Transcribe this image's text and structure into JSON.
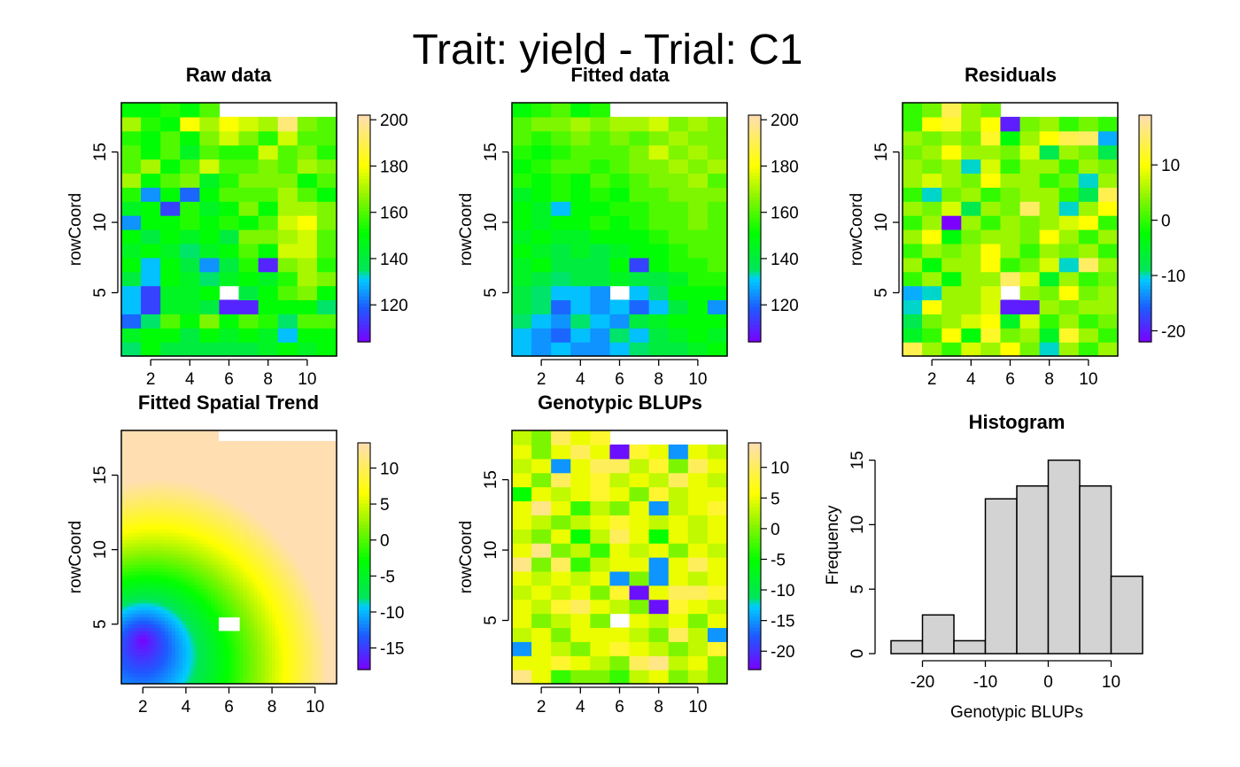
{
  "title": "Trait: yield - Trial: C1",
  "chart_data": [
    {
      "type": "heatmap",
      "title": "Raw data",
      "xlabel": "",
      "ylabel": "rowCoord",
      "xticks": [
        2,
        4,
        6,
        8,
        10
      ],
      "yticks": [
        5,
        10,
        15
      ],
      "xlim": [
        0.5,
        11.5
      ],
      "ylim": [
        0.5,
        18.5
      ],
      "colorbar": {
        "range": [
          104,
          202
        ],
        "ticks": [
          120,
          140,
          160,
          180,
          200
        ]
      },
      "empty_cells": [
        [
          6,
          5
        ],
        [
          6,
          18
        ],
        [
          7,
          18
        ],
        [
          8,
          18
        ],
        [
          9,
          18
        ],
        [
          10,
          18
        ],
        [
          11,
          18
        ]
      ],
      "values": [
        [
          135,
          150,
          140,
          140,
          140,
          140,
          140,
          145,
          150,
          145,
          150
        ],
        [
          145,
          150,
          150,
          140,
          150,
          145,
          150,
          145,
          130,
          150,
          150
        ],
        [
          120,
          135,
          160,
          150,
          165,
          150,
          160,
          155,
          135,
          160,
          160
        ],
        [
          130,
          115,
          145,
          145,
          140,
          110,
          110,
          150,
          150,
          150,
          135
        ],
        [
          130,
          115,
          145,
          145,
          150,
          null,
          140,
          150,
          160,
          165,
          150
        ],
        [
          140,
          130,
          150,
          145,
          135,
          145,
          150,
          145,
          155,
          170,
          165
        ],
        [
          150,
          130,
          150,
          140,
          125,
          140,
          155,
          110,
          165,
          170,
          155
        ],
        [
          145,
          150,
          145,
          135,
          145,
          150,
          160,
          150,
          175,
          175,
          160
        ],
        [
          150,
          140,
          150,
          145,
          150,
          140,
          165,
          165,
          170,
          175,
          160
        ],
        [
          125,
          150,
          150,
          155,
          150,
          155,
          150,
          160,
          175,
          180,
          165
        ],
        [
          145,
          150,
          115,
          155,
          145,
          150,
          165,
          150,
          170,
          170,
          165
        ],
        [
          155,
          125,
          150,
          120,
          150,
          160,
          160,
          160,
          170,
          160,
          150
        ],
        [
          170,
          150,
          160,
          165,
          145,
          155,
          165,
          165,
          165,
          150,
          160
        ],
        [
          160,
          170,
          150,
          160,
          175,
          160,
          160,
          165,
          160,
          170,
          165
        ],
        [
          160,
          150,
          160,
          145,
          160,
          155,
          155,
          175,
          160,
          165,
          155
        ],
        [
          155,
          150,
          160,
          150,
          165,
          175,
          165,
          155,
          175,
          160,
          160
        ],
        [
          170,
          155,
          150,
          180,
          170,
          180,
          175,
          170,
          195,
          165,
          160
        ],
        [
          150,
          150,
          155,
          150,
          160,
          null,
          null,
          null,
          null,
          null,
          null
        ]
      ]
    },
    {
      "type": "heatmap",
      "title": "Fitted data",
      "xlabel": "",
      "ylabel": "rowCoord",
      "xticks": [
        2,
        4,
        6,
        8,
        10
      ],
      "yticks": [
        5,
        10,
        15
      ],
      "xlim": [
        0.5,
        11.5
      ],
      "ylim": [
        0.5,
        18.5
      ],
      "colorbar": {
        "range": [
          104,
          202
        ],
        "ticks": [
          120,
          140,
          160,
          180,
          200
        ]
      },
      "empty_cells": [
        [
          6,
          5
        ],
        [
          6,
          18
        ],
        [
          7,
          18
        ],
        [
          8,
          18
        ],
        [
          9,
          18
        ],
        [
          10,
          18
        ],
        [
          11,
          18
        ]
      ],
      "values": [
        [
          130,
          125,
          130,
          125,
          125,
          130,
          135,
          140,
          140,
          145,
          150
        ],
        [
          130,
          125,
          120,
          130,
          125,
          135,
          130,
          140,
          145,
          150,
          145
        ],
        [
          135,
          130,
          125,
          135,
          130,
          125,
          140,
          145,
          150,
          150,
          150
        ],
        [
          140,
          135,
          120,
          130,
          125,
          130,
          120,
          130,
          140,
          150,
          125
        ],
        [
          140,
          135,
          130,
          130,
          125,
          null,
          130,
          135,
          150,
          150,
          150
        ],
        [
          145,
          140,
          135,
          140,
          140,
          145,
          140,
          140,
          145,
          155,
          155
        ],
        [
          145,
          150,
          140,
          140,
          140,
          150,
          115,
          150,
          155,
          155,
          160
        ],
        [
          150,
          145,
          140,
          145,
          140,
          145,
          150,
          150,
          155,
          160,
          160
        ],
        [
          145,
          150,
          145,
          145,
          150,
          150,
          150,
          155,
          160,
          160,
          160
        ],
        [
          150,
          145,
          150,
          150,
          155,
          150,
          155,
          160,
          160,
          165,
          160
        ],
        [
          150,
          145,
          130,
          150,
          150,
          155,
          155,
          160,
          160,
          165,
          160
        ],
        [
          145,
          150,
          155,
          150,
          155,
          150,
          160,
          160,
          165,
          165,
          165
        ],
        [
          155,
          150,
          155,
          150,
          160,
          155,
          160,
          165,
          165,
          170,
          160
        ],
        [
          150,
          155,
          160,
          160,
          155,
          160,
          165,
          165,
          170,
          165,
          170
        ],
        [
          155,
          150,
          155,
          160,
          160,
          160,
          165,
          175,
          165,
          170,
          165
        ],
        [
          160,
          155,
          160,
          165,
          160,
          165,
          160,
          165,
          170,
          165,
          165
        ],
        [
          160,
          165,
          165,
          170,
          165,
          170,
          170,
          175,
          165,
          170,
          165
        ],
        [
          150,
          155,
          160,
          150,
          155,
          null,
          null,
          null,
          null,
          null,
          null
        ]
      ]
    },
    {
      "type": "heatmap",
      "title": "Residuals",
      "xlabel": "",
      "ylabel": "rowCoord",
      "xticks": [
        2,
        4,
        6,
        8,
        10
      ],
      "yticks": [
        5,
        10,
        15
      ],
      "xlim": [
        0.5,
        11.5
      ],
      "ylim": [
        0.5,
        18.5
      ],
      "colorbar": {
        "range": [
          -22,
          19
        ],
        "ticks": [
          -20,
          -10,
          0,
          10
        ]
      },
      "empty_cells": [
        [
          6,
          5
        ],
        [
          6,
          18
        ],
        [
          7,
          18
        ],
        [
          8,
          18
        ],
        [
          9,
          18
        ],
        [
          10,
          18
        ],
        [
          11,
          18
        ]
      ],
      "values": [
        [
          14,
          5,
          0,
          8,
          5,
          10,
          3,
          -10,
          5,
          0,
          5
        ],
        [
          -5,
          0,
          10,
          -3,
          12,
          3,
          5,
          -5,
          12,
          5,
          0
        ],
        [
          -8,
          3,
          5,
          8,
          10,
          -5,
          8,
          0,
          5,
          0,
          3
        ],
        [
          -10,
          10,
          5,
          5,
          8,
          -20,
          -20,
          5,
          3,
          5,
          5
        ],
        [
          -12,
          -10,
          5,
          5,
          8,
          null,
          5,
          3,
          10,
          3,
          5
        ],
        [
          0,
          5,
          -3,
          5,
          5,
          15,
          8,
          -5,
          5,
          0,
          3
        ],
        [
          5,
          -3,
          5,
          5,
          10,
          0,
          3,
          8,
          -10,
          15,
          5
        ],
        [
          0,
          5,
          3,
          5,
          10,
          5,
          0,
          5,
          3,
          5,
          0
        ],
        [
          5,
          10,
          -3,
          3,
          5,
          5,
          3,
          10,
          5,
          0,
          5
        ],
        [
          0,
          5,
          -22,
          5,
          0,
          5,
          3,
          5,
          8,
          10,
          0
        ],
        [
          5,
          3,
          8,
          -8,
          5,
          3,
          15,
          5,
          -10,
          5,
          10
        ],
        [
          0,
          -10,
          3,
          5,
          0,
          3,
          5,
          5,
          0,
          -8,
          14
        ],
        [
          5,
          8,
          5,
          3,
          10,
          5,
          5,
          0,
          3,
          -10,
          5
        ],
        [
          5,
          3,
          5,
          -10,
          8,
          0,
          5,
          5,
          0,
          5,
          3
        ],
        [
          3,
          5,
          10,
          5,
          5,
          3,
          8,
          -8,
          5,
          3,
          -8
        ],
        [
          5,
          3,
          5,
          3,
          12,
          -3,
          5,
          10,
          14,
          15,
          -12
        ],
        [
          0,
          10,
          12,
          5,
          10,
          -20,
          3,
          5,
          0,
          3,
          0
        ],
        [
          0,
          3,
          14,
          5,
          3,
          null,
          null,
          null,
          null,
          null,
          null
        ]
      ]
    },
    {
      "type": "heatmap",
      "title": "Fitted Spatial Trend",
      "xlabel": "",
      "ylabel": "rowCoord",
      "xticks": [
        2,
        4,
        6,
        8,
        10
      ],
      "yticks": [
        5,
        10,
        15
      ],
      "xlim": [
        1,
        11
      ],
      "ylim": [
        1,
        18
      ],
      "colorbar": {
        "range": [
          -18,
          13.5
        ],
        "ticks": [
          -15,
          -10,
          -5,
          0,
          5,
          10
        ]
      },
      "continuous_surface": true,
      "surface_min": {
        "x": 2,
        "y": 4,
        "value": -18
      },
      "surface_max": {
        "x": 11,
        "y": 18,
        "value": 13.5
      },
      "empty_cells": [
        [
          6,
          5
        ],
        [
          6,
          18
        ],
        [
          7,
          18
        ],
        [
          8,
          18
        ],
        [
          9,
          18
        ],
        [
          10,
          18
        ],
        [
          11,
          18
        ]
      ]
    },
    {
      "type": "heatmap",
      "title": "Genotypic BLUPs",
      "xlabel": "",
      "ylabel": "rowCoord",
      "xticks": [
        2,
        4,
        6,
        8,
        10
      ],
      "yticks": [
        5,
        10,
        15
      ],
      "xlim": [
        0.5,
        11.5
      ],
      "ylim": [
        0.5,
        18.5
      ],
      "colorbar": {
        "range": [
          -23,
          14
        ],
        "ticks": [
          -20,
          -15,
          -10,
          -5,
          0,
          5,
          10
        ]
      },
      "empty_cells": [
        [
          6,
          5
        ],
        [
          6,
          18
        ],
        [
          7,
          18
        ],
        [
          8,
          18
        ],
        [
          9,
          18
        ],
        [
          10,
          18
        ],
        [
          11,
          18
        ]
      ],
      "values": [
        [
          12,
          5,
          -3,
          0,
          0,
          -3,
          3,
          5,
          0,
          3,
          0
        ],
        [
          5,
          5,
          8,
          5,
          3,
          0,
          10,
          12,
          3,
          5,
          0
        ],
        [
          -15,
          5,
          3,
          0,
          5,
          8,
          5,
          3,
          0,
          3,
          8
        ],
        [
          3,
          5,
          0,
          5,
          5,
          5,
          3,
          0,
          10,
          3,
          -15
        ],
        [
          5,
          0,
          3,
          5,
          0,
          null,
          5,
          3,
          5,
          0,
          5
        ],
        [
          5,
          3,
          8,
          10,
          5,
          3,
          0,
          -22,
          8,
          5,
          3
        ],
        [
          3,
          5,
          3,
          5,
          0,
          8,
          -22,
          5,
          10,
          10,
          8
        ],
        [
          5,
          3,
          5,
          3,
          5,
          -15,
          0,
          -15,
          5,
          3,
          5
        ],
        [
          12,
          0,
          10,
          -3,
          3,
          5,
          5,
          -15,
          5,
          10,
          5
        ],
        [
          5,
          12,
          0,
          3,
          -3,
          5,
          3,
          5,
          0,
          5,
          3
        ],
        [
          3,
          0,
          5,
          -5,
          3,
          10,
          5,
          -5,
          5,
          3,
          5
        ],
        [
          5,
          3,
          0,
          3,
          5,
          8,
          5,
          3,
          5,
          3,
          5
        ],
        [
          5,
          12,
          5,
          -3,
          3,
          0,
          5,
          -15,
          3,
          5,
          8
        ],
        [
          -5,
          5,
          3,
          5,
          8,
          5,
          0,
          8,
          3,
          5,
          5
        ],
        [
          5,
          0,
          10,
          5,
          8,
          3,
          5,
          3,
          10,
          5,
          3
        ],
        [
          3,
          5,
          -15,
          5,
          10,
          10,
          3,
          8,
          0,
          10,
          5
        ],
        [
          5,
          0,
          5,
          10,
          5,
          -22,
          8,
          5,
          -15,
          5,
          3
        ],
        [
          3,
          0,
          10,
          5,
          8,
          null,
          null,
          null,
          null,
          null,
          null
        ]
      ]
    },
    {
      "type": "bar",
      "title": "Histogram",
      "xlabel": "Genotypic BLUPs",
      "ylabel": "Frequency",
      "bin_edges": [
        -25,
        -20,
        -15,
        -10,
        -5,
        0,
        5,
        10,
        15
      ],
      "values": [
        1,
        3,
        1,
        12,
        13,
        15,
        13,
        6
      ],
      "xticks": [
        -20,
        -10,
        0,
        10
      ],
      "yticks": [
        0,
        5,
        10,
        15
      ],
      "xlim": [
        -25,
        15
      ],
      "ylim": [
        0,
        16
      ],
      "bar_color": "#d3d3d3"
    }
  ]
}
